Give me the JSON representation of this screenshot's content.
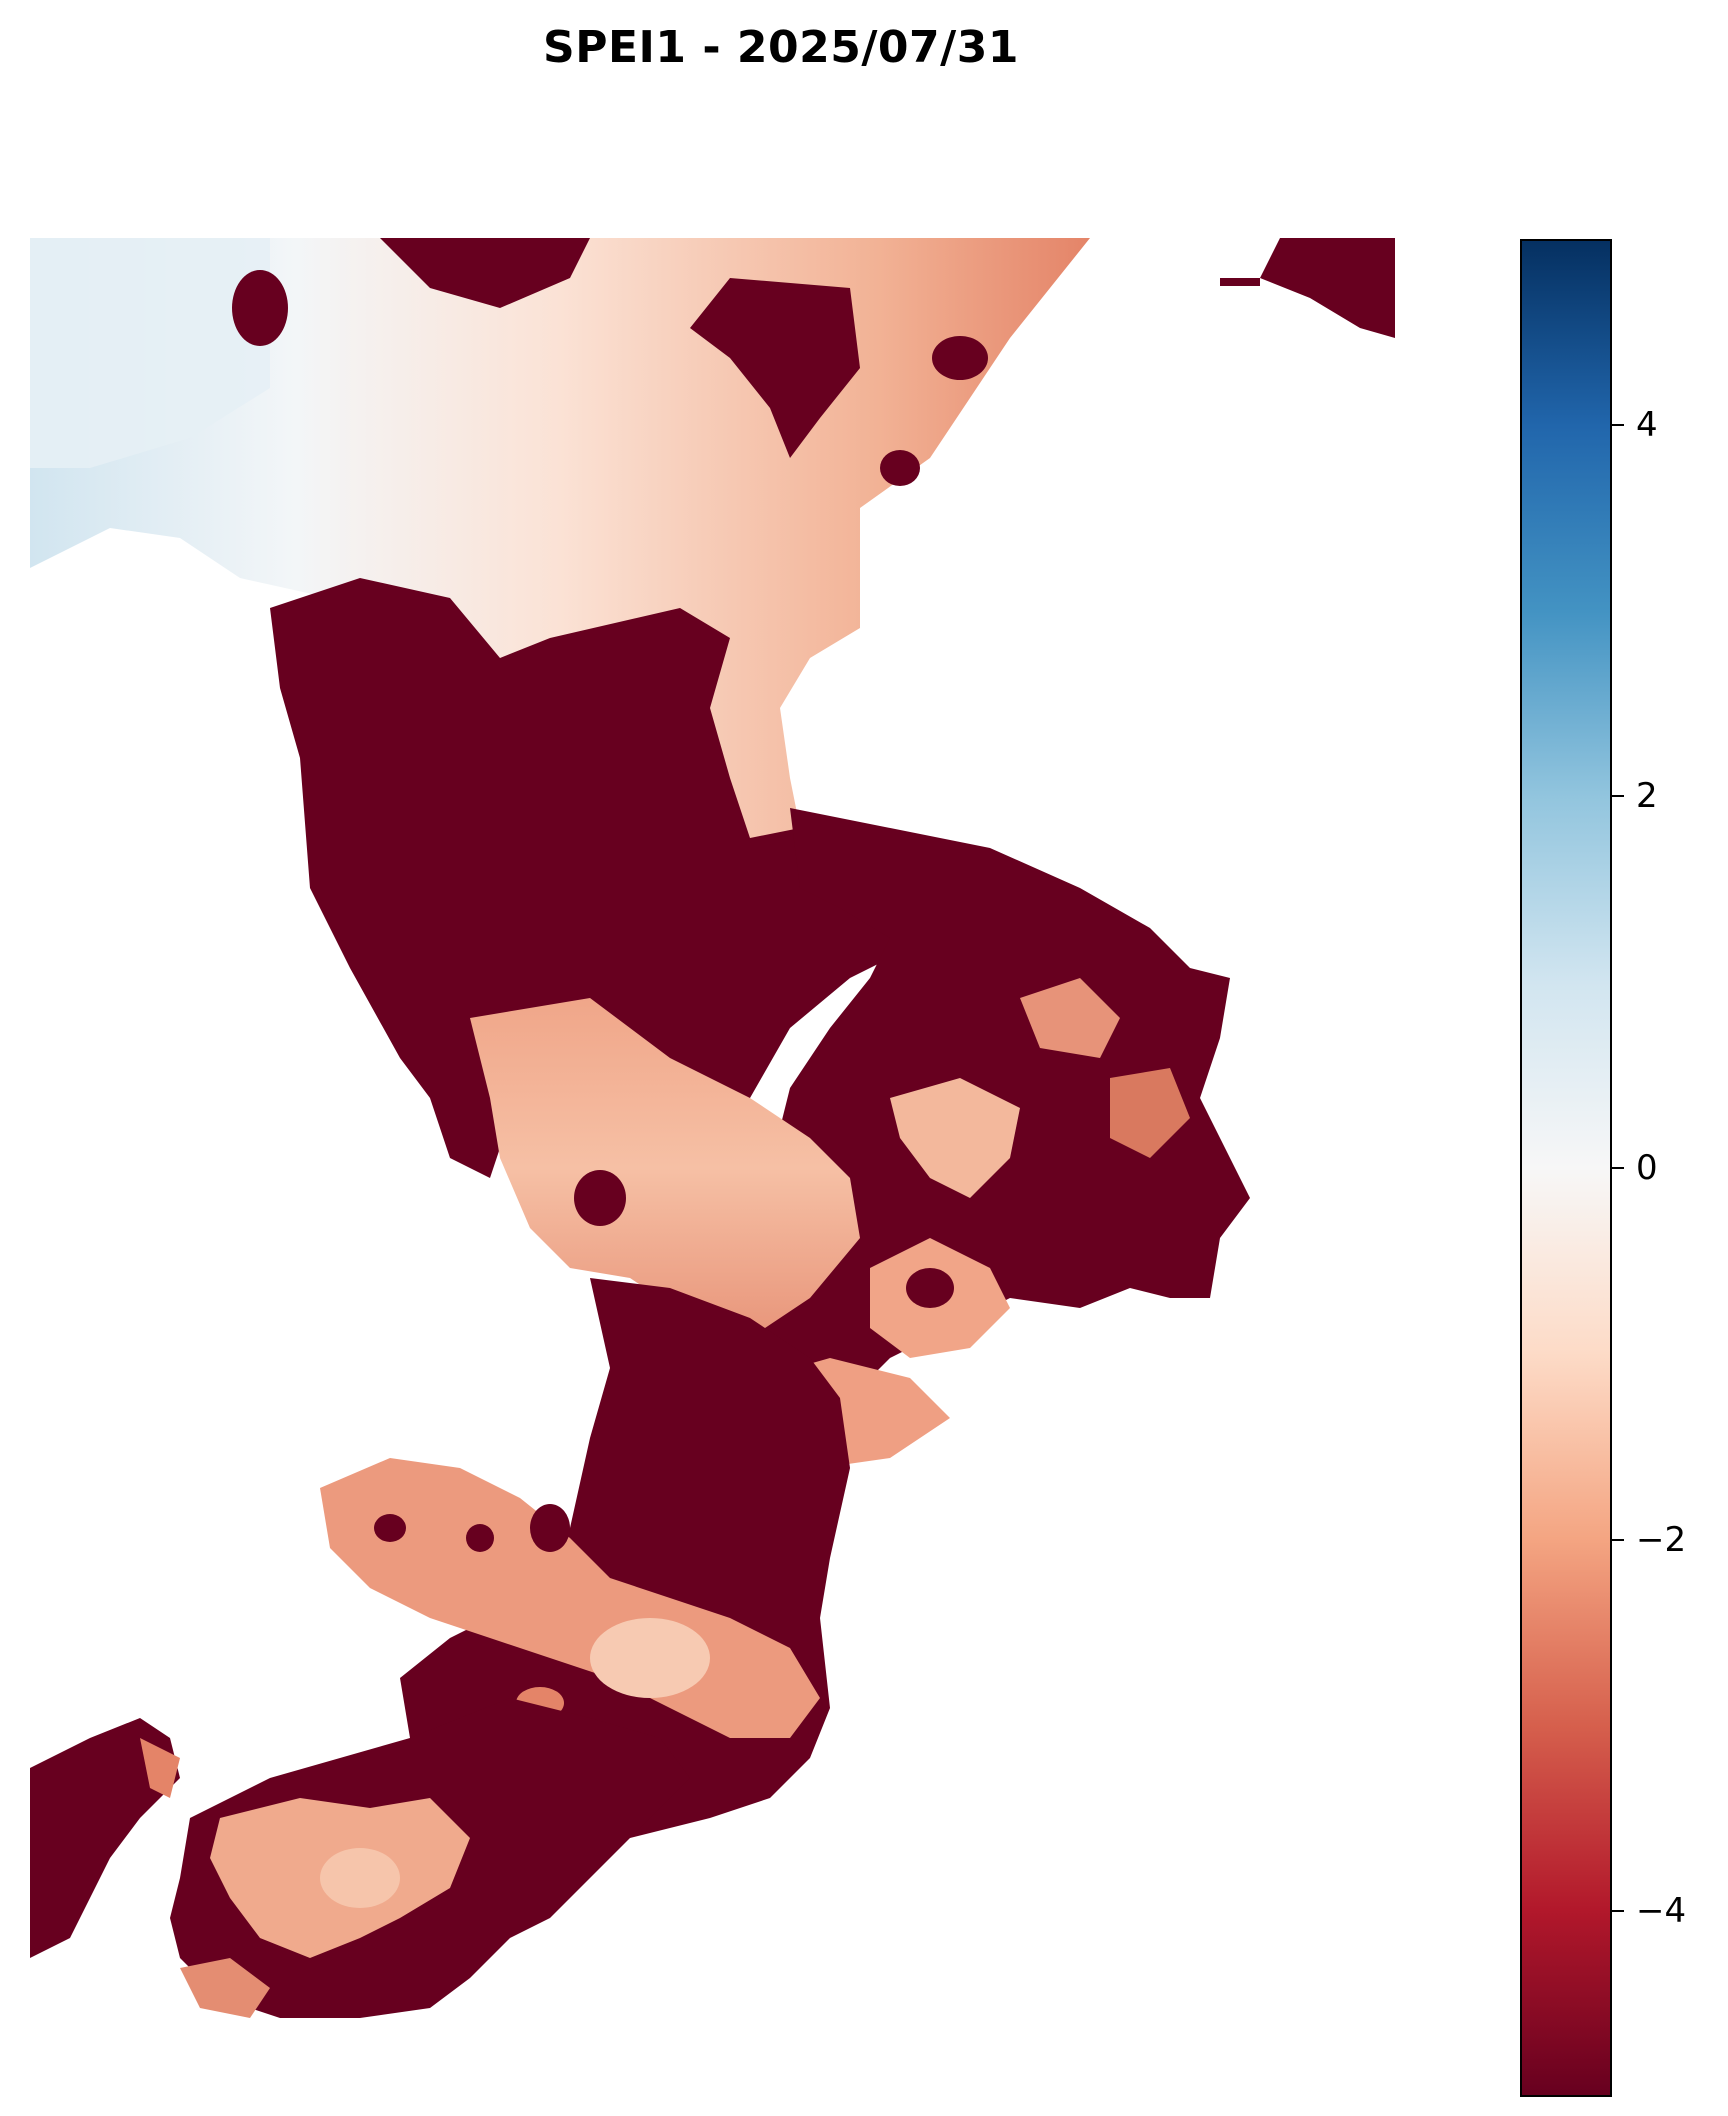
{
  "title": "SPEI1 - 2025/07/31",
  "map": {
    "variable": "SPEI1",
    "date": "2025/07/31",
    "no_data_color": "#ffffff",
    "dry_extreme_color": "#67001f",
    "wet_extreme_color": "#053061"
  },
  "colorbar": {
    "colormap": "RdBu",
    "range": [
      -5,
      5
    ],
    "stops": [
      "#67001f",
      "#b2182b",
      "#d6604d",
      "#f4a582",
      "#fddbc7",
      "#f7f7f7",
      "#d1e5f0",
      "#92c5de",
      "#4393c3",
      "#2166ac",
      "#053061"
    ],
    "ticks": [
      {
        "value": 4,
        "label": "4"
      },
      {
        "value": 2,
        "label": "2"
      },
      {
        "value": 0,
        "label": "0"
      },
      {
        "value": -2,
        "label": "−2"
      },
      {
        "value": -4,
        "label": "−4"
      }
    ]
  }
}
